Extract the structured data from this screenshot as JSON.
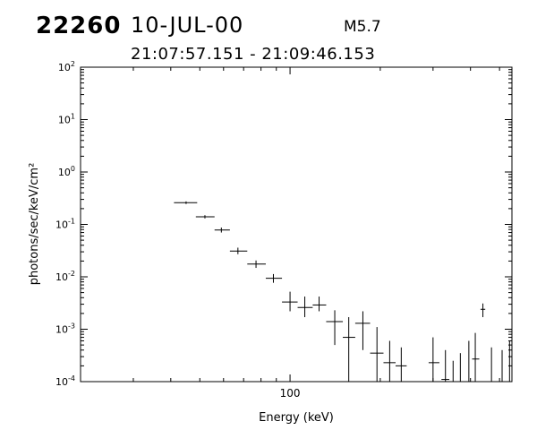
{
  "header": {
    "event_id": "22260",
    "date": "10-JUL-00",
    "flare_class": "M5.7",
    "time_range": "21:07:57.151 - 21:09:46.153"
  },
  "chart_data": {
    "type": "scatter",
    "title": "",
    "xlabel": "Energy (keV)",
    "ylabel": "photons/sec/keV/cm²",
    "xscale": "log",
    "yscale": "log",
    "xlim": [
      20,
      550
    ],
    "ylim": [
      0.0001,
      100
    ],
    "x_tick_labels": [
      {
        "value": 100,
        "label": "100"
      }
    ],
    "y_tick_labels": [
      {
        "value": 100,
        "base": "10",
        "exp": "2"
      },
      {
        "value": 10,
        "base": "10",
        "exp": "1"
      },
      {
        "value": 1,
        "base": "10",
        "exp": "0"
      },
      {
        "value": 0.1,
        "base": "10",
        "exp": "-1"
      },
      {
        "value": 0.01,
        "base": "10",
        "exp": "-2"
      },
      {
        "value": 0.001,
        "base": "10",
        "exp": "-3"
      },
      {
        "value": 0.0001,
        "base": "10",
        "exp": "-4"
      }
    ],
    "grid": false,
    "series": [
      {
        "color": "#000000",
        "points": [
          {
            "x": 45,
            "xlo": 41,
            "xhi": 49,
            "y": 0.26,
            "ylo": 0.245,
            "yhi": 0.275
          },
          {
            "x": 52,
            "xlo": 48.5,
            "xhi": 56,
            "y": 0.14,
            "ylo": 0.13,
            "yhi": 0.15
          },
          {
            "x": 59,
            "xlo": 56,
            "xhi": 63,
            "y": 0.078,
            "ylo": 0.07,
            "yhi": 0.087
          },
          {
            "x": 67,
            "xlo": 63,
            "xhi": 72,
            "y": 0.031,
            "ylo": 0.027,
            "yhi": 0.036
          },
          {
            "x": 77,
            "xlo": 72,
            "xhi": 83,
            "y": 0.0175,
            "ylo": 0.0148,
            "yhi": 0.0205
          },
          {
            "x": 88,
            "xlo": 83,
            "xhi": 94,
            "y": 0.0094,
            "ylo": 0.0077,
            "yhi": 0.0113
          },
          {
            "x": 100,
            "xlo": 94,
            "xhi": 106,
            "y": 0.0033,
            "ylo": 0.0022,
            "yhi": 0.0052
          },
          {
            "x": 112,
            "xlo": 106,
            "xhi": 119,
            "y": 0.0026,
            "ylo": 0.0017,
            "yhi": 0.0042
          },
          {
            "x": 125,
            "xlo": 119,
            "xhi": 132,
            "y": 0.0029,
            "ylo": 0.0022,
            "yhi": 0.0042
          },
          {
            "x": 141,
            "xlo": 132,
            "xhi": 150,
            "y": 0.0014,
            "ylo": 0.0005,
            "yhi": 0.0023
          },
          {
            "x": 157,
            "xlo": 150,
            "xhi": 165,
            "y": 0.0007,
            "ylo": 0.0001,
            "yhi": 0.0017
          },
          {
            "x": 175,
            "xlo": 165,
            "xhi": 185,
            "y": 0.0013,
            "ylo": 0.0004,
            "yhi": 0.0022
          },
          {
            "x": 195,
            "xlo": 185,
            "xhi": 205,
            "y": 0.00035,
            "ylo": 0.0001,
            "yhi": 0.0011
          },
          {
            "x": 215,
            "xlo": 205,
            "xhi": 225,
            "y": 0.00023,
            "ylo": 0.0001,
            "yhi": 0.0006
          },
          {
            "x": 235,
            "xlo": 225,
            "xhi": 245,
            "y": 0.0002,
            "ylo": 0.0001,
            "yhi": 0.00045
          },
          {
            "x": 300,
            "xlo": 290,
            "xhi": 315,
            "y": 0.00023,
            "ylo": 0.0001,
            "yhi": 0.0007
          },
          {
            "x": 330,
            "xlo": 320,
            "xhi": 340,
            "y": 0.00011,
            "ylo": 0.0001,
            "yhi": 0.0004
          },
          {
            "x": 350,
            "xlo": 342,
            "xhi": 358,
            "y": 0.0001,
            "ylo": 0.0001,
            "yhi": 0.00025
          },
          {
            "x": 370,
            "xlo": 362,
            "xhi": 378,
            "y": 0.0001,
            "ylo": 0.0001,
            "yhi": 0.00035
          },
          {
            "x": 395,
            "xlo": 378,
            "xhi": 412,
            "y": 0.0001,
            "ylo": 0.0001,
            "yhi": 0.0006
          },
          {
            "x": 415,
            "xlo": 405,
            "xhi": 428,
            "y": 0.00027,
            "ylo": 0.0001,
            "yhi": 0.00085
          },
          {
            "x": 440,
            "xlo": 432,
            "xhi": 448,
            "y": 0.0024,
            "ylo": 0.0017,
            "yhi": 0.0031
          },
          {
            "x": 470,
            "xlo": 460,
            "xhi": 480,
            "y": 0.0001,
            "ylo": 0.0001,
            "yhi": 0.00045
          },
          {
            "x": 510,
            "xlo": 500,
            "xhi": 520,
            "y": 0.0001,
            "ylo": 0.0001,
            "yhi": 0.0004
          },
          {
            "x": 540,
            "xlo": 530,
            "xhi": 550,
            "y": 0.0001,
            "ylo": 0.0001,
            "yhi": 0.0006
          }
        ]
      }
    ]
  }
}
